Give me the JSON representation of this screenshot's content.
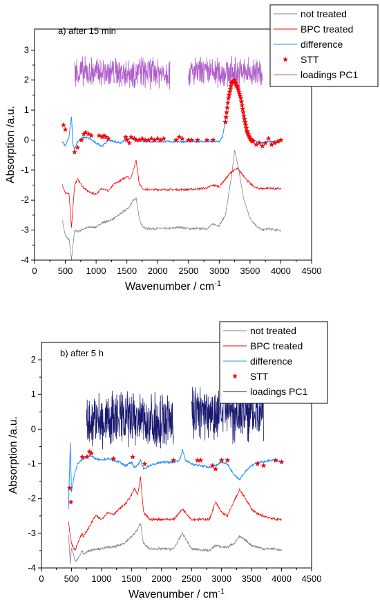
{
  "chart_data": [
    {
      "type": "line",
      "title": "a) after 15 min",
      "xlabel": "Wavenumber / cm",
      "xlabel_sup": "-1",
      "ylabel": "Absorption /a.u.",
      "xlim": [
        0,
        4500
      ],
      "ylim": [
        -4,
        3.7
      ],
      "xticks": [
        0,
        500,
        1000,
        1500,
        2000,
        2500,
        3000,
        3500,
        4000,
        4500
      ],
      "yticks": [
        -4,
        -3,
        -2,
        -1,
        0,
        1,
        2,
        3
      ],
      "legend_position": "top-right",
      "series": [
        {
          "name": "not treated",
          "color": "#808080",
          "marker": "line",
          "x": [
            450,
            500,
            560,
            600,
            650,
            700,
            800,
            900,
            1000,
            1100,
            1200,
            1300,
            1400,
            1500,
            1550,
            1600,
            1650,
            1700,
            1750,
            1800,
            2000,
            2200,
            2350,
            2500,
            2800,
            2900,
            3000,
            3100,
            3200,
            3250,
            3300,
            3400,
            3500,
            3600,
            3700,
            3800,
            3900,
            4000
          ],
          "y": [
            -2.65,
            -3.2,
            -3.3,
            -4.0,
            -3.0,
            -3.05,
            -2.95,
            -2.9,
            -2.9,
            -2.75,
            -2.7,
            -2.6,
            -2.45,
            -2.3,
            -2.2,
            -2.0,
            -1.95,
            -2.6,
            -2.85,
            -2.95,
            -2.95,
            -2.95,
            -2.9,
            -2.95,
            -2.95,
            -2.8,
            -2.85,
            -2.5,
            -1.2,
            -0.35,
            -0.8,
            -2.0,
            -2.6,
            -2.85,
            -3.0,
            -2.95,
            -3.0,
            -3.0
          ]
        },
        {
          "name": "BPC treated",
          "color": "#ff0000",
          "marker": "line",
          "x": [
            450,
            500,
            560,
            600,
            650,
            700,
            800,
            900,
            1000,
            1100,
            1200,
            1300,
            1400,
            1500,
            1550,
            1600,
            1650,
            1700,
            1750,
            1800,
            2000,
            2200,
            2350,
            2500,
            2800,
            2900,
            3000,
            3100,
            3200,
            3300,
            3400,
            3500,
            3600,
            3700,
            3800,
            3900,
            4000
          ],
          "y": [
            -1.5,
            -1.75,
            -1.8,
            -2.9,
            -1.5,
            -1.3,
            -1.6,
            -1.75,
            -1.8,
            -1.6,
            -1.7,
            -1.45,
            -1.35,
            -1.2,
            -1.3,
            -1.05,
            -0.65,
            -1.45,
            -1.6,
            -1.65,
            -1.65,
            -1.65,
            -1.65,
            -1.65,
            -1.6,
            -1.5,
            -1.55,
            -1.3,
            -1.05,
            -0.95,
            -1.2,
            -1.45,
            -1.6,
            -1.62,
            -1.6,
            -1.62,
            -1.62
          ]
        },
        {
          "name": "difference",
          "color": "#1e90ff",
          "marker": "line",
          "x": [
            450,
            500,
            560,
            600,
            620,
            650,
            700,
            800,
            900,
            1000,
            1100,
            1200,
            1300,
            1400,
            1500,
            1600,
            1700,
            1800,
            2000,
            2200,
            2400,
            2600,
            2800,
            3000,
            3050,
            3100,
            3150,
            3200,
            3250,
            3300,
            3350,
            3400,
            3450,
            3500,
            3600,
            3700,
            3800,
            3900,
            4000
          ],
          "y": [
            -0.05,
            -0.2,
            0.1,
            0.8,
            -0.1,
            -0.3,
            -0.05,
            0.1,
            0.05,
            -0.1,
            -0.2,
            0.0,
            -0.05,
            -0.1,
            0.05,
            0.05,
            0.0,
            -0.05,
            -0.05,
            -0.05,
            -0.05,
            -0.05,
            -0.05,
            -0.05,
            0.1,
            0.6,
            1.4,
            1.9,
            2.0,
            1.8,
            1.4,
            0.8,
            0.3,
            0.05,
            -0.05,
            -0.1,
            -0.05,
            -0.05,
            -0.05
          ]
        },
        {
          "name": "STT",
          "color": "#ff0000",
          "marker": "star",
          "x": [
            470,
            500,
            650,
            700,
            760,
            800,
            830,
            880,
            920,
            1050,
            1100,
            1130,
            1160,
            1200,
            1480,
            1500,
            1540,
            1570,
            1620,
            1650,
            1700,
            1750,
            1800,
            1850,
            1900,
            1950,
            2000,
            2050,
            2100,
            2300,
            2350,
            2400,
            2500,
            2550,
            2650,
            2800,
            2900,
            3100,
            3150,
            3200,
            3250,
            3300,
            3350,
            3400,
            3450,
            3500,
            3550,
            3600,
            3650,
            3700,
            3750,
            3800,
            3850,
            3900,
            3950,
            4000
          ],
          "y": [
            0.5,
            0.35,
            -0.4,
            -0.25,
            0.0,
            0.2,
            0.25,
            0.2,
            0.15,
            0.15,
            0.1,
            0.15,
            0.1,
            0.05,
            0.1,
            0.0,
            -0.1,
            0.1,
            0.05,
            0.0,
            0.0,
            0.05,
            0.0,
            0.0,
            0.05,
            0.0,
            0.05,
            0.0,
            0.05,
            0.0,
            0.1,
            0.05,
            0.0,
            0.0,
            0.0,
            0.0,
            0.0,
            0.6,
            1.4,
            1.9,
            2.0,
            1.75,
            1.4,
            0.8,
            0.3,
            0.05,
            -0.05,
            -0.15,
            -0.1,
            -0.2,
            -0.1,
            0.05,
            -0.15,
            -0.1,
            -0.05,
            0.0
          ]
        },
        {
          "name": "loadings PC1",
          "color": "#b05ccc",
          "marker": "line",
          "x": [
            650,
            2200,
            2500,
            3700
          ],
          "y": [
            2.25,
            2.25,
            2.25,
            2.25
          ]
        }
      ]
    },
    {
      "type": "line",
      "title": "b) after 5 h",
      "xlabel": "Wavenumber / cm",
      "xlabel_sup": "-1",
      "ylabel": "Absorption /a.u.",
      "xlim": [
        0,
        4500
      ],
      "ylim": [
        -4,
        2.5
      ],
      "xticks": [
        0,
        500,
        1000,
        1500,
        2000,
        2500,
        3000,
        3500,
        4000,
        4500
      ],
      "yticks": [
        -4,
        -3,
        -2,
        -1,
        0,
        1,
        2
      ],
      "legend_position": "top-right",
      "series": [
        {
          "name": "not treated",
          "color": "#808080",
          "marker": "line",
          "x": [
            450,
            480,
            500,
            560,
            620,
            680,
            700,
            800,
            900,
            1000,
            1100,
            1200,
            1300,
            1400,
            1500,
            1550,
            1600,
            1650,
            1700,
            1800,
            2000,
            2200,
            2350,
            2500,
            2800,
            2900,
            3000,
            3100,
            3200,
            3300,
            3400,
            3500,
            3600,
            3700,
            3800,
            3900,
            4000
          ],
          "y": [
            -3.0,
            -3.9,
            -3.4,
            -3.8,
            -3.7,
            -3.5,
            -3.6,
            -3.5,
            -3.45,
            -3.45,
            -3.4,
            -3.4,
            -3.35,
            -3.25,
            -3.1,
            -3.0,
            -2.9,
            -2.7,
            -3.3,
            -3.45,
            -3.45,
            -3.45,
            -3.0,
            -3.45,
            -3.5,
            -3.35,
            -3.4,
            -3.4,
            -3.3,
            -3.1,
            -3.2,
            -3.35,
            -3.4,
            -3.45,
            -3.45,
            -3.45,
            -3.5
          ]
        },
        {
          "name": "BPC treated",
          "color": "#ff0000",
          "marker": "line",
          "x": [
            450,
            500,
            560,
            620,
            680,
            700,
            800,
            900,
            1000,
            1100,
            1200,
            1300,
            1400,
            1500,
            1550,
            1600,
            1650,
            1700,
            1800,
            2000,
            2200,
            2350,
            2500,
            2800,
            2900,
            3000,
            3100,
            3200,
            3300,
            3400,
            3500,
            3600,
            3700,
            3800,
            3900,
            4000
          ],
          "y": [
            -2.7,
            -3.3,
            -3.5,
            -3.2,
            -3.0,
            -3.1,
            -2.8,
            -2.5,
            -2.6,
            -2.4,
            -2.45,
            -2.3,
            -2.15,
            -1.9,
            -1.7,
            -1.9,
            -1.4,
            -2.4,
            -2.6,
            -2.6,
            -2.6,
            -2.3,
            -2.6,
            -2.6,
            -2.1,
            -2.4,
            -2.5,
            -2.1,
            -1.75,
            -2.0,
            -2.3,
            -2.45,
            -2.5,
            -2.55,
            -2.6,
            -2.6
          ]
        },
        {
          "name": "difference",
          "color": "#1e90ff",
          "marker": "line",
          "x": [
            450,
            480,
            500,
            550,
            600,
            700,
            800,
            900,
            1000,
            1100,
            1200,
            1300,
            1400,
            1500,
            1550,
            1600,
            1650,
            1700,
            1800,
            2000,
            2200,
            2300,
            2350,
            2400,
            2500,
            2800,
            2900,
            3000,
            3100,
            3200,
            3300,
            3350,
            3400,
            3500,
            3600,
            3700,
            3800,
            3900,
            4000
          ],
          "y": [
            -2.3,
            -0.4,
            -1.8,
            -1.3,
            -1.0,
            -0.85,
            -0.75,
            -0.85,
            -0.9,
            -0.85,
            -0.9,
            -0.95,
            -1.05,
            -0.95,
            -1.1,
            -1.05,
            -0.9,
            -1.15,
            -1.05,
            -0.95,
            -0.95,
            -0.9,
            -0.6,
            -0.9,
            -1.0,
            -1.1,
            -1.05,
            -0.95,
            -1.0,
            -1.3,
            -1.45,
            -1.35,
            -1.2,
            -1.05,
            -0.95,
            -0.95,
            -0.9,
            -0.9,
            -0.95
          ]
        },
        {
          "name": "STT",
          "color": "#ff0000",
          "marker": "star",
          "x": [
            470,
            490,
            680,
            760,
            800,
            830,
            1200,
            1520,
            1720,
            2200,
            2600,
            2650,
            2850,
            2900,
            3000,
            3100,
            3600,
            3700,
            3900,
            4000
          ],
          "y": [
            -1.7,
            -2.1,
            -0.8,
            -0.8,
            -0.65,
            -0.7,
            -0.85,
            -0.8,
            -1.0,
            -0.9,
            -0.9,
            -0.9,
            -1.05,
            -1.15,
            -0.9,
            -0.9,
            -1.0,
            -1.05,
            -0.9,
            -0.95
          ]
        },
        {
          "name": "loadings PC1",
          "color": "#191970",
          "marker": "line",
          "x": [
            750,
            2200,
            2500,
            3700
          ],
          "y": [
            0.25,
            0.25,
            0.5,
            0.5
          ]
        }
      ]
    }
  ]
}
